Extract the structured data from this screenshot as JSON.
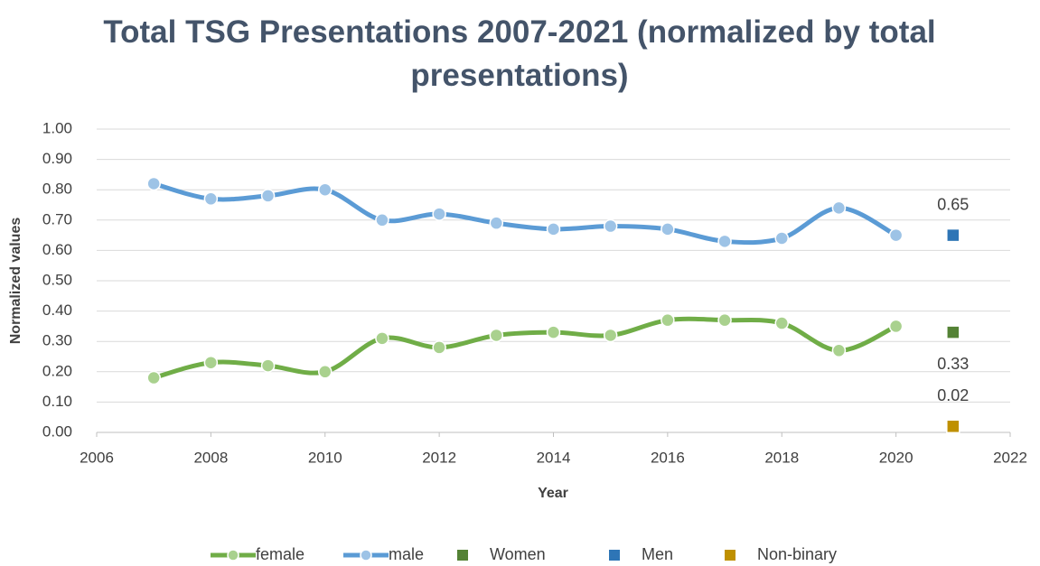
{
  "chart_data": {
    "type": "line",
    "title": "Total TSG Presentations 2007-2021 (normalized by total presentations)",
    "x_label": "Year",
    "y_label": "Normalized values",
    "xlim": [
      2006,
      2022
    ],
    "xticks": [
      2006,
      2008,
      2010,
      2012,
      2014,
      2016,
      2018,
      2020,
      2022
    ],
    "ylim": [
      0,
      1
    ],
    "yticks": [
      {
        "value": 0,
        "label": "0.00"
      },
      {
        "value": 0.1,
        "label": "0.10"
      },
      {
        "value": 0.2,
        "label": "0.20"
      },
      {
        "value": 0.3,
        "label": "0.30"
      },
      {
        "value": 0.4,
        "label": "0.40"
      },
      {
        "value": 0.5,
        "label": "0.50"
      },
      {
        "value": 0.6,
        "label": "0.60"
      },
      {
        "value": 0.7,
        "label": "0.70"
      },
      {
        "value": 0.8,
        "label": "0.80"
      },
      {
        "value": 0.9,
        "label": "0.90"
      },
      {
        "value": 1,
        "label": "1.00"
      }
    ],
    "grid": true,
    "legend": "bottom",
    "series": [
      {
        "name": "female",
        "color": "#70ad47",
        "marker_color": "#a9d18e",
        "marker": "circle",
        "smooth": true,
        "x": [
          2007,
          2008,
          2009,
          2010,
          2011,
          2012,
          2013,
          2014,
          2015,
          2016,
          2017,
          2018,
          2019,
          2020
        ],
        "values": [
          0.18,
          0.23,
          0.22,
          0.2,
          0.31,
          0.28,
          0.32,
          0.33,
          0.32,
          0.37,
          0.37,
          0.36,
          0.27,
          0.35
        ]
      },
      {
        "name": "male",
        "color": "#5b9bd5",
        "marker_color": "#9dc3e6",
        "marker": "circle",
        "smooth": true,
        "x": [
          2007,
          2008,
          2009,
          2010,
          2011,
          2012,
          2013,
          2014,
          2015,
          2016,
          2017,
          2018,
          2019,
          2020
        ],
        "values": [
          0.82,
          0.77,
          0.78,
          0.8,
          0.7,
          0.72,
          0.69,
          0.67,
          0.68,
          0.67,
          0.63,
          0.64,
          0.74,
          0.65
        ]
      },
      {
        "name": "Women",
        "color": "#548235",
        "marker": "square",
        "label_position": "below",
        "x": [
          2021
        ],
        "values": [
          0.33
        ]
      },
      {
        "name": "Men",
        "color": "#2e75b6",
        "marker": "square",
        "label_position": "above",
        "x": [
          2021
        ],
        "values": [
          0.65
        ]
      },
      {
        "name": "Non-binary",
        "color": "#bf9000",
        "marker": "square",
        "label_position": "above",
        "x": [
          2021
        ],
        "values": [
          0.02
        ]
      }
    ]
  }
}
